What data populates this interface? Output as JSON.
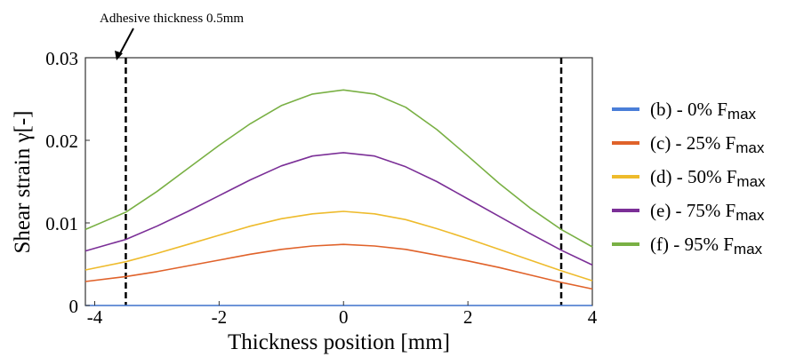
{
  "chart_data": {
    "type": "line",
    "title": "",
    "xlabel": "Thickness position [mm]",
    "ylabel": "Shear strain γ[-]",
    "xlim": [
      -4.15,
      4
    ],
    "ylim": [
      0,
      0.03
    ],
    "x_ticks": [
      -4,
      -2,
      0,
      2,
      4
    ],
    "x_tick_labels": [
      "-4",
      "-2",
      "0",
      "2",
      "4"
    ],
    "y_ticks": [
      0,
      0.01,
      0.02,
      0.03
    ],
    "y_tick_labels": [
      "0",
      "0.01",
      "0.02",
      "0.03"
    ],
    "grid": false,
    "legend_position": "right",
    "x": [
      -4.15,
      -3.5,
      -3,
      -2.5,
      -2,
      -1.5,
      -1,
      -0.5,
      0,
      0.5,
      1,
      1.5,
      2,
      2.5,
      3,
      3.5,
      4
    ],
    "series": [
      {
        "name": "(b) - 0% F",
        "name_sub": "max",
        "color": "#4a7ed8",
        "values": [
          0,
          0,
          0,
          0,
          0,
          0,
          0,
          0,
          0,
          0,
          0,
          0,
          0,
          0,
          0,
          0,
          0
        ]
      },
      {
        "name": "(c) - 25% F",
        "name_sub": "max",
        "color": "#e0622a",
        "values": [
          0.0029,
          0.0035,
          0.0041,
          0.0048,
          0.0055,
          0.0062,
          0.0068,
          0.0072,
          0.0074,
          0.0072,
          0.0068,
          0.0061,
          0.0054,
          0.0046,
          0.0037,
          0.0028,
          0.002
        ]
      },
      {
        "name": "(d) - 50% F",
        "name_sub": "max",
        "color": "#eebb2c",
        "values": [
          0.0043,
          0.0053,
          0.0063,
          0.0074,
          0.0085,
          0.0096,
          0.0105,
          0.0111,
          0.0114,
          0.0111,
          0.0104,
          0.0093,
          0.0081,
          0.0068,
          0.0055,
          0.0042,
          0.003
        ]
      },
      {
        "name": "(e) - 75% F",
        "name_sub": "max",
        "color": "#7b2f97",
        "values": [
          0.0066,
          0.008,
          0.0096,
          0.0114,
          0.0133,
          0.0152,
          0.0169,
          0.0181,
          0.0185,
          0.0181,
          0.0168,
          0.015,
          0.0129,
          0.0108,
          0.0087,
          0.0067,
          0.0049
        ]
      },
      {
        "name": "(f) - 95% F",
        "name_sub": "max",
        "color": "#79b044",
        "values": [
          0.0092,
          0.0113,
          0.0138,
          0.0166,
          0.0194,
          0.022,
          0.0242,
          0.0256,
          0.0261,
          0.0256,
          0.024,
          0.0213,
          0.0181,
          0.0148,
          0.0118,
          0.0092,
          0.0071
        ]
      }
    ],
    "vertical_lines": [
      -3.5,
      3.5
    ],
    "annotation": {
      "text": "Adhesive thickness 0.5mm",
      "points_to_x": -3.5
    }
  }
}
